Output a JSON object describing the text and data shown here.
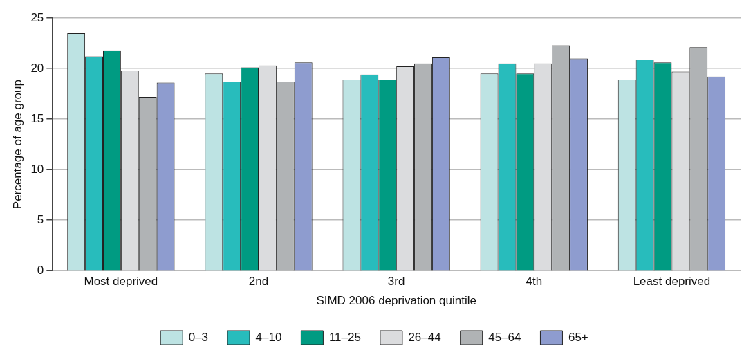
{
  "chart_data": {
    "type": "bar",
    "xlabel": "SIMD 2006 deprivation quintile",
    "ylabel": "Percentage of age group",
    "categories": [
      "Most deprived",
      "2nd",
      "3rd",
      "4th",
      "Least deprived"
    ],
    "series": [
      {
        "name": "0–3",
        "color": "#bde3e3",
        "values": [
          23.5,
          19.5,
          18.9,
          19.5,
          18.9
        ]
      },
      {
        "name": "4–10",
        "color": "#28bcbc",
        "values": [
          21.2,
          18.7,
          19.4,
          20.5,
          20.9
        ]
      },
      {
        "name": "11–25",
        "color": "#009b82",
        "values": [
          21.8,
          20.1,
          18.9,
          19.5,
          20.6
        ]
      },
      {
        "name": "26–44",
        "color": "#dbdcde",
        "values": [
          19.8,
          20.3,
          20.2,
          20.5,
          19.7
        ]
      },
      {
        "name": "45–64",
        "color": "#b0b3b5",
        "values": [
          17.2,
          18.7,
          20.5,
          22.3,
          22.1
        ]
      },
      {
        "name": "65+",
        "color": "#8e9ccf",
        "values": [
          18.6,
          20.6,
          21.1,
          21.0,
          19.2
        ]
      }
    ],
    "ylim": [
      0,
      25
    ],
    "yticks": [
      0,
      5,
      10,
      15,
      20,
      25
    ],
    "grid": "y",
    "legend": "bottom"
  }
}
